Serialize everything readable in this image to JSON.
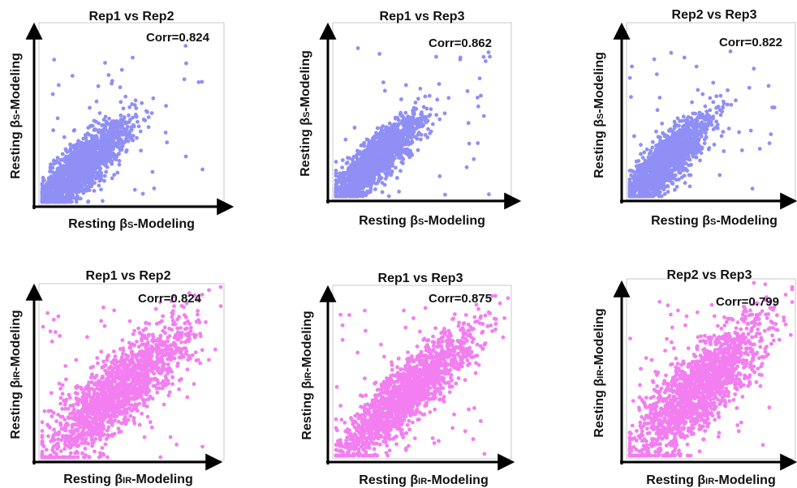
{
  "chart_data": [
    {
      "type": "scatter",
      "title": "Rep1 vs Rep2",
      "annotation": "Corr=0.824",
      "xlabel_main": "Resting ",
      "xlabel_greek": "β",
      "xlabel_sub": "S",
      "xlabel_tail": "-Modeling",
      "ylabel_main": "Resting ",
      "ylabel_greek": "β",
      "ylabel_sub": "S",
      "ylabel_tail": "-Modeling",
      "series": [
        {
          "color": "#8f8ff5",
          "corr": 0.824
        }
      ]
    },
    {
      "type": "scatter",
      "title": "Rep1 vs Rep3",
      "annotation": "Corr=0.862",
      "xlabel_main": "Resting ",
      "xlabel_greek": "β",
      "xlabel_sub": "S",
      "xlabel_tail": "-Modeling",
      "ylabel_main": "Resting ",
      "ylabel_greek": "β",
      "ylabel_sub": "S",
      "ylabel_tail": "-Modeling",
      "series": [
        {
          "color": "#8f8ff5",
          "corr": 0.862
        }
      ]
    },
    {
      "type": "scatter",
      "title": "Rep2 vs Rep3",
      "annotation": "Corr=0.822",
      "xlabel_main": "Resting ",
      "xlabel_greek": "β",
      "xlabel_sub": "S",
      "xlabel_tail": "-Modeling",
      "ylabel_main": "Resting ",
      "ylabel_greek": "β",
      "ylabel_sub": "S",
      "ylabel_tail": "-Modeling",
      "series": [
        {
          "color": "#8f8ff5",
          "corr": 0.822
        }
      ]
    },
    {
      "type": "scatter",
      "title": "Rep1 vs Rep2",
      "annotation": "Corr=0.824",
      "xlabel_main": "Resting ",
      "xlabel_greek": "β",
      "xlabel_sub": "IR",
      "xlabel_tail": "-Modeling",
      "ylabel_main": "Resting ",
      "ylabel_greek": "β",
      "ylabel_sub": "IR",
      "ylabel_tail": "-Modeling",
      "series": [
        {
          "color": "#f27ef0",
          "corr": 0.824
        }
      ]
    },
    {
      "type": "scatter",
      "title": "Rep1 vs Rep3",
      "annotation": "Corr=0.875",
      "xlabel_main": "Resting ",
      "xlabel_greek": "β",
      "xlabel_sub": "IR",
      "xlabel_tail": "-Modeling",
      "ylabel_main": "Resting ",
      "ylabel_greek": "β",
      "ylabel_sub": "IR",
      "ylabel_tail": "-Modeling",
      "series": [
        {
          "color": "#f27ef0",
          "corr": 0.875
        }
      ]
    },
    {
      "type": "scatter",
      "title": "Rep2 vs Rep3",
      "annotation": "Corr=0.799",
      "xlabel_main": "Resting ",
      "xlabel_greek": "β",
      "xlabel_sub": "IR",
      "xlabel_tail": "-Modeling",
      "ylabel_main": "Resting ",
      "ylabel_greek": "β",
      "ylabel_sub": "IR",
      "ylabel_tail": "-Modeling",
      "series": [
        {
          "color": "#f27ef0",
          "corr": 0.799
        }
      ]
    }
  ]
}
